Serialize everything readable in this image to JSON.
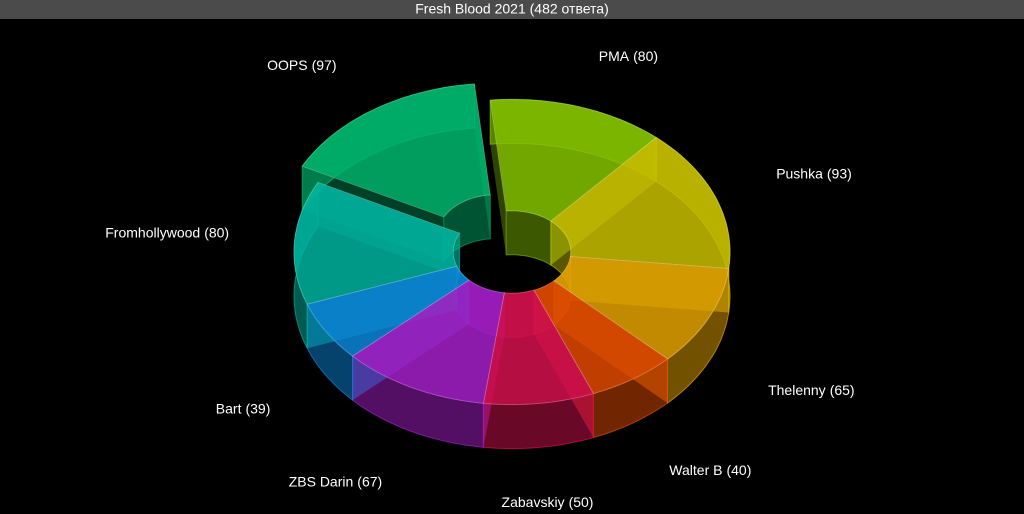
{
  "chart_data": {
    "type": "donut",
    "title": "Fresh Blood 2021 (482 ответа)",
    "categories": [
      "PMA",
      "Pushka",
      "Thelenny",
      "Walter B",
      "Zabavskiy",
      "ZBS Darin",
      "Bart",
      "Fromhollywood",
      "OOPS"
    ],
    "values": [
      80,
      93,
      65,
      40,
      50,
      67,
      39,
      80,
      97
    ],
    "value_labels": [
      "(80)",
      "(93)",
      "(65)",
      "(40)",
      "(50)",
      "(67)",
      "(39)",
      "(80)",
      "(97)"
    ],
    "colors": [
      "#86c400",
      "#c8c000",
      "#e3a200",
      "#e24a00",
      "#d4104e",
      "#a41ec8",
      "#0a86d8",
      "#00b4a0",
      "#00b870"
    ],
    "exploded": [
      false,
      false,
      false,
      false,
      false,
      false,
      false,
      false,
      true
    ]
  }
}
